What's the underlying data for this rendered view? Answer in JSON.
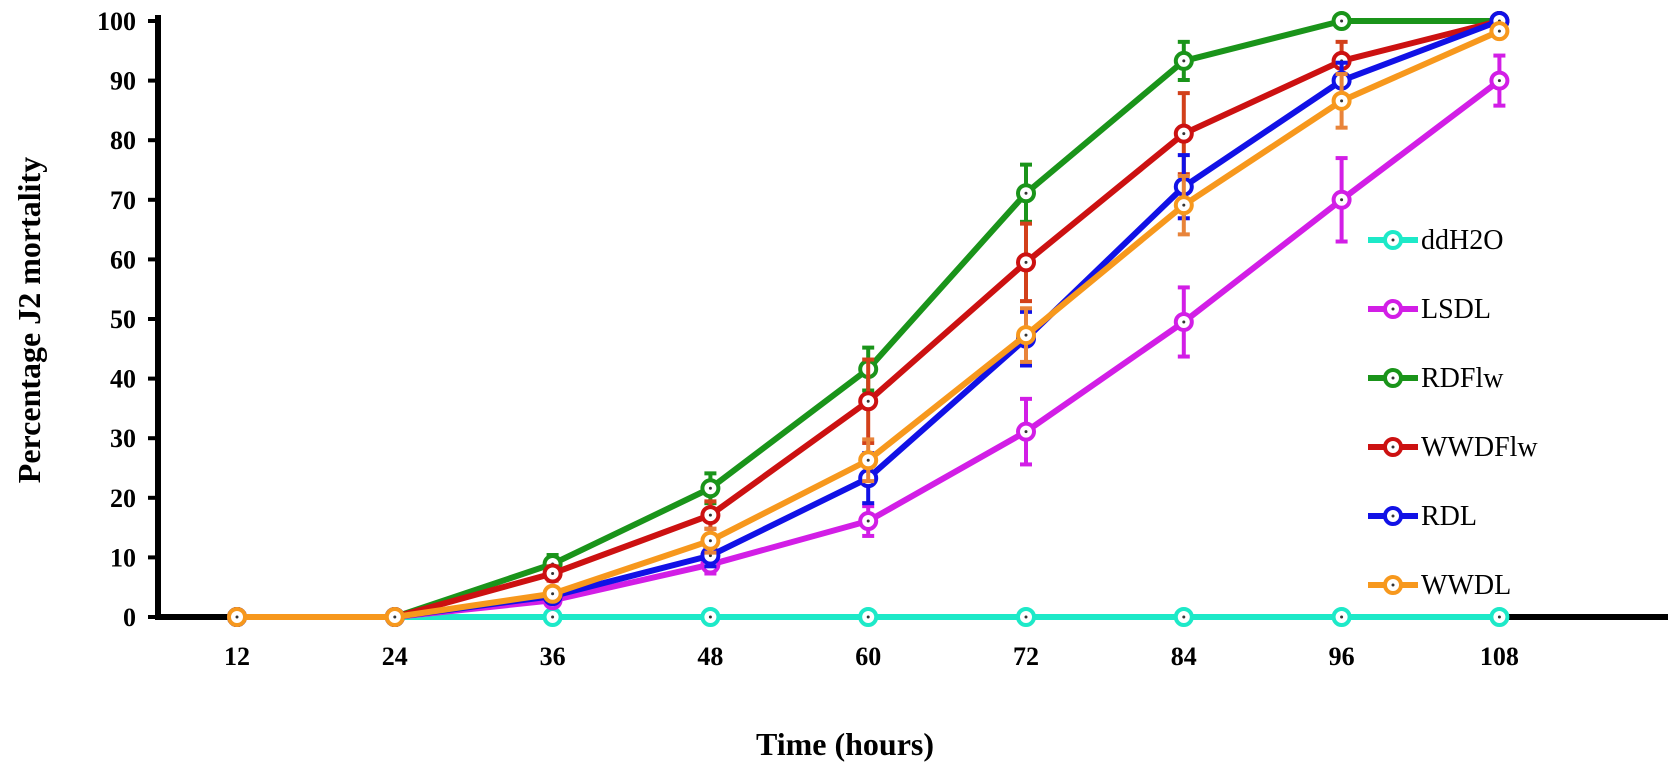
{
  "chart_data": {
    "type": "line",
    "xlabel": "Time (hours)",
    "ylabel": "Percentage J2 mortality",
    "x": [
      12,
      24,
      36,
      48,
      60,
      72,
      84,
      96,
      108
    ],
    "ylim": [
      0,
      100
    ],
    "yticks": [
      0,
      10,
      20,
      30,
      40,
      50,
      60,
      70,
      80,
      90,
      100
    ],
    "grid": false,
    "legend_position": "right",
    "series": [
      {
        "name": "ddH2O",
        "color": "#1de9c8",
        "errcolor": "#1de9c8",
        "values": [
          0,
          0,
          0,
          0,
          0,
          0,
          0,
          0,
          0
        ],
        "errors": [
          0,
          0,
          0,
          0,
          0,
          0,
          0,
          0,
          0
        ]
      },
      {
        "name": "LSDL",
        "color": "#d21ee6",
        "errcolor": "#d21ee6",
        "values": [
          0,
          0,
          2.8,
          8.8,
          16.1,
          31.1,
          49.5,
          70.0,
          90.0
        ],
        "errors": [
          0,
          0,
          0.8,
          1.5,
          2.5,
          5.5,
          5.8,
          7.0,
          4.2
        ]
      },
      {
        "name": "RDFlw",
        "color": "#1a941a",
        "errcolor": "#1a941a",
        "values": [
          0,
          0,
          8.9,
          21.6,
          41.6,
          71.1,
          93.3,
          100,
          100
        ],
        "errors": [
          0,
          0,
          1.5,
          2.5,
          3.6,
          4.8,
          3.2,
          0,
          0
        ]
      },
      {
        "name": "WWDFlw",
        "color": "#cc1111",
        "errcolor": "#d2401a",
        "values": [
          0,
          0,
          7.3,
          17.1,
          36.2,
          59.5,
          81.1,
          93.3,
          100
        ],
        "errors": [
          0,
          0,
          1.2,
          2.3,
          7.0,
          6.5,
          6.8,
          3.2,
          0
        ]
      },
      {
        "name": "RDL",
        "color": "#1111e6",
        "errcolor": "#1111e6",
        "values": [
          0,
          0,
          3.5,
          10.3,
          23.3,
          46.7,
          72.2,
          90.0,
          100
        ],
        "errors": [
          0,
          0,
          1.0,
          1.8,
          4.2,
          4.5,
          5.3,
          3.0,
          0
        ]
      },
      {
        "name": "WWDL",
        "color": "#f7981d",
        "errcolor": "#e8843a",
        "values": [
          0,
          0,
          3.9,
          12.8,
          26.3,
          47.3,
          69.1,
          86.6,
          98.3
        ],
        "errors": [
          0,
          0,
          1.0,
          2.0,
          3.5,
          4.5,
          4.9,
          4.5,
          0.8
        ]
      }
    ]
  }
}
